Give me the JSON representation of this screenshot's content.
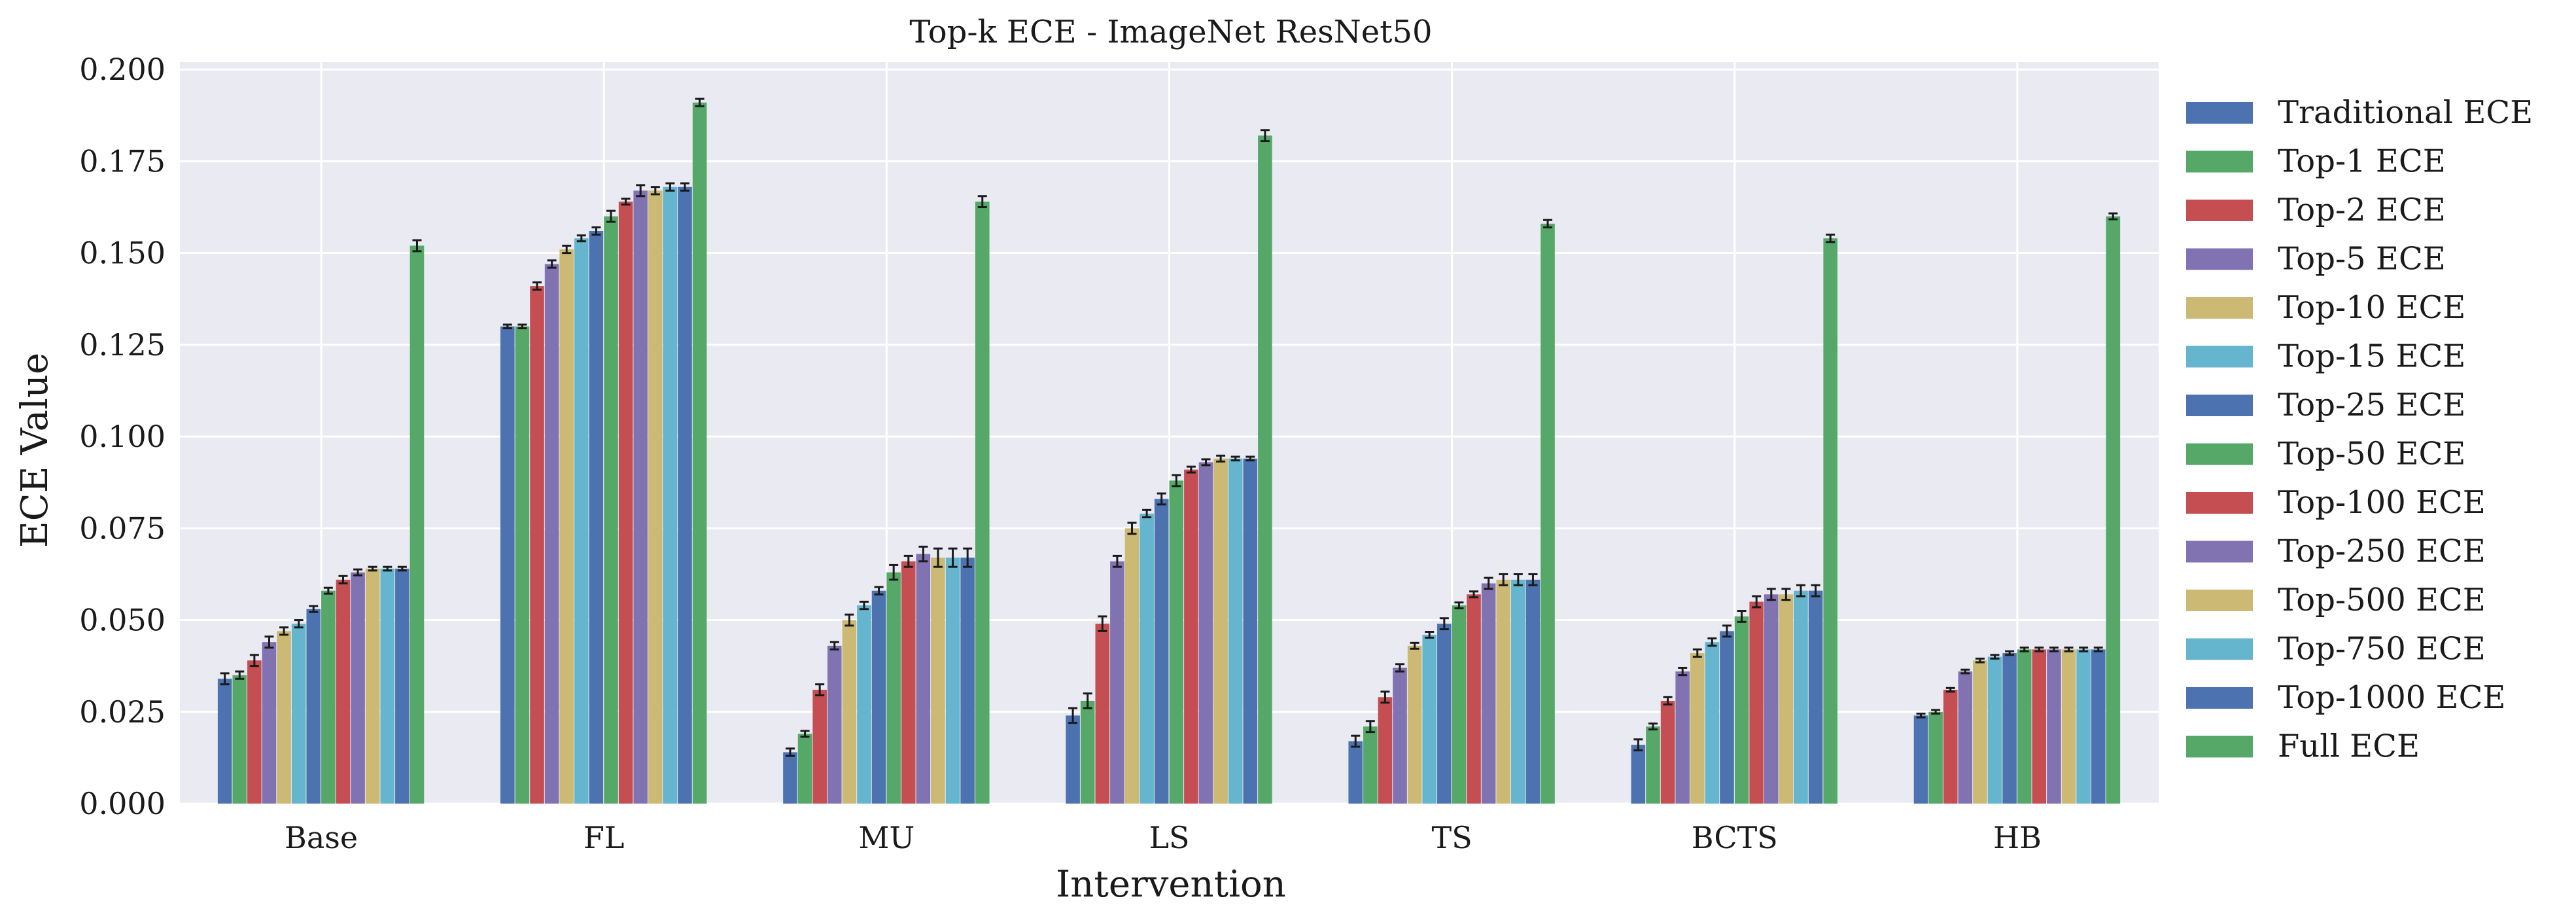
{
  "chart_data": {
    "type": "bar",
    "title": "Top-k ECE - ImageNet ResNet50",
    "xlabel": "Intervention",
    "ylabel": "ECE Value",
    "ylim": [
      0,
      0.202
    ],
    "yticks": [
      0.0,
      0.025,
      0.05,
      0.075,
      0.1,
      0.125,
      0.15,
      0.175,
      0.2
    ],
    "ytick_labels": [
      "0.000",
      "0.025",
      "0.050",
      "0.075",
      "0.100",
      "0.125",
      "0.150",
      "0.175",
      "0.200"
    ],
    "grid": true,
    "legend_position": "right-outside",
    "background": "#eaeaf2",
    "categories": [
      "Base",
      "FL",
      "MU",
      "LS",
      "TS",
      "BCTS",
      "HB"
    ],
    "series": [
      {
        "name": "Traditional ECE",
        "color": "#4c72b0",
        "values": [
          0.034,
          0.13,
          0.014,
          0.024,
          0.017,
          0.016,
          0.024
        ],
        "errors": [
          0.0015,
          0.0005,
          0.001,
          0.002,
          0.0015,
          0.0015,
          0.0005
        ]
      },
      {
        "name": "Top-1 ECE",
        "color": "#55a868",
        "values": [
          0.035,
          0.13,
          0.019,
          0.028,
          0.021,
          0.021,
          0.025
        ],
        "errors": [
          0.001,
          0.0005,
          0.0008,
          0.002,
          0.0015,
          0.0008,
          0.0005
        ]
      },
      {
        "name": "Top-2 ECE",
        "color": "#c44e52",
        "values": [
          0.039,
          0.141,
          0.031,
          0.049,
          0.029,
          0.028,
          0.031
        ],
        "errors": [
          0.0015,
          0.001,
          0.0015,
          0.002,
          0.0015,
          0.001,
          0.0005
        ]
      },
      {
        "name": "Top-5 ECE",
        "color": "#8172b2",
        "values": [
          0.044,
          0.147,
          0.043,
          0.066,
          0.037,
          0.036,
          0.036
        ],
        "errors": [
          0.0015,
          0.001,
          0.001,
          0.0015,
          0.001,
          0.001,
          0.0005
        ]
      },
      {
        "name": "Top-10 ECE",
        "color": "#ccb974",
        "values": [
          0.047,
          0.151,
          0.05,
          0.075,
          0.043,
          0.041,
          0.039
        ],
        "errors": [
          0.001,
          0.001,
          0.0015,
          0.0015,
          0.0008,
          0.001,
          0.0005
        ]
      },
      {
        "name": "Top-15 ECE",
        "color": "#64b5cd",
        "values": [
          0.049,
          0.154,
          0.054,
          0.079,
          0.046,
          0.044,
          0.04
        ],
        "errors": [
          0.001,
          0.0008,
          0.001,
          0.001,
          0.0008,
          0.001,
          0.0005
        ]
      },
      {
        "name": "Top-25 ECE",
        "color": "#4c72b0",
        "values": [
          0.053,
          0.156,
          0.058,
          0.083,
          0.049,
          0.047,
          0.041
        ],
        "errors": [
          0.0008,
          0.001,
          0.001,
          0.0015,
          0.0015,
          0.0015,
          0.0005
        ]
      },
      {
        "name": "Top-50 ECE",
        "color": "#55a868",
        "values": [
          0.058,
          0.16,
          0.063,
          0.088,
          0.054,
          0.051,
          0.042
        ],
        "errors": [
          0.0008,
          0.0015,
          0.002,
          0.0015,
          0.0008,
          0.0015,
          0.0005
        ]
      },
      {
        "name": "Top-100 ECE",
        "color": "#c44e52",
        "values": [
          0.061,
          0.164,
          0.066,
          0.091,
          0.057,
          0.055,
          0.042
        ],
        "errors": [
          0.001,
          0.0008,
          0.0015,
          0.0008,
          0.0008,
          0.0015,
          0.0005
        ]
      },
      {
        "name": "Top-250 ECE",
        "color": "#8172b2",
        "values": [
          0.063,
          0.167,
          0.068,
          0.093,
          0.06,
          0.057,
          0.042
        ],
        "errors": [
          0.0008,
          0.0015,
          0.002,
          0.0008,
          0.0015,
          0.0015,
          0.0005
        ]
      },
      {
        "name": "Top-500 ECE",
        "color": "#ccb974",
        "values": [
          0.064,
          0.167,
          0.067,
          0.094,
          0.061,
          0.057,
          0.042
        ],
        "errors": [
          0.0005,
          0.001,
          0.0025,
          0.0008,
          0.0015,
          0.0015,
          0.0005
        ]
      },
      {
        "name": "Top-750 ECE",
        "color": "#64b5cd",
        "values": [
          0.064,
          0.168,
          0.067,
          0.094,
          0.061,
          0.058,
          0.042
        ],
        "errors": [
          0.0005,
          0.001,
          0.0025,
          0.0005,
          0.0015,
          0.0015,
          0.0005
        ]
      },
      {
        "name": "Top-1000 ECE",
        "color": "#4c72b0",
        "values": [
          0.064,
          0.168,
          0.067,
          0.094,
          0.061,
          0.058,
          0.042
        ],
        "errors": [
          0.0005,
          0.001,
          0.0025,
          0.0005,
          0.0015,
          0.0015,
          0.0005
        ]
      },
      {
        "name": "Full ECE",
        "color": "#55a868",
        "values": [
          0.152,
          0.191,
          0.164,
          0.182,
          0.158,
          0.154,
          0.16
        ],
        "errors": [
          0.0015,
          0.001,
          0.0015,
          0.0015,
          0.001,
          0.001,
          0.0008
        ]
      }
    ]
  }
}
